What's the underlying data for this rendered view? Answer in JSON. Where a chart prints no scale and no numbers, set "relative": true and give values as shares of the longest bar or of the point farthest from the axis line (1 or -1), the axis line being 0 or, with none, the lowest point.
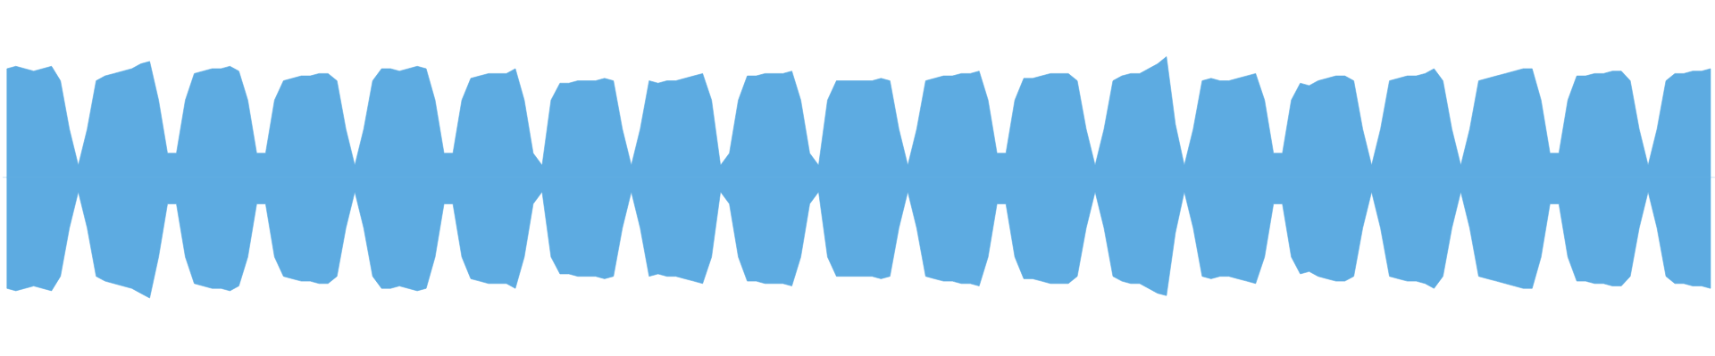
{
  "chart_data": {
    "type": "area",
    "relative": true,
    "ref_lines": [
      {
        "axis": "y",
        "value": 0,
        "color": "#5dabe1"
      }
    ],
    "categories": [
      null,
      null,
      null,
      null,
      null,
      null,
      null,
      null,
      null,
      null,
      null,
      null,
      null,
      null,
      null,
      null,
      null,
      null,
      null,
      null,
      null,
      null,
      null,
      null,
      null,
      null,
      null,
      null,
      null,
      null,
      null,
      null,
      null,
      null,
      null,
      null,
      null,
      null,
      null,
      null,
      null,
      null,
      null,
      null,
      null,
      null,
      null,
      null,
      null,
      null,
      null,
      null,
      null,
      null,
      null,
      null,
      null,
      null,
      null,
      null,
      null,
      null,
      null,
      null,
      null,
      null,
      null,
      null,
      null,
      null,
      null,
      null,
      null,
      null,
      null,
      null,
      null,
      null,
      null,
      null,
      null,
      null,
      null,
      null,
      null,
      null,
      null,
      null,
      null,
      null,
      null,
      null,
      null,
      null,
      null,
      null,
      null,
      null,
      null,
      null,
      null,
      null,
      null,
      null,
      null,
      null,
      null,
      null,
      null,
      null,
      null,
      null,
      null,
      null,
      null,
      null,
      null,
      null,
      null,
      null,
      null,
      null,
      null,
      null,
      null,
      null,
      null,
      null,
      null,
      null,
      null,
      null,
      null,
      null,
      null,
      null,
      null,
      null,
      null,
      null,
      null,
      null,
      null,
      null,
      null,
      null,
      null,
      null,
      null,
      null,
      null,
      null,
      null,
      null,
      null,
      null,
      null,
      null,
      null,
      null,
      null,
      null,
      null,
      null,
      null,
      null,
      null,
      null,
      null,
      null,
      null,
      null,
      null,
      null,
      null,
      null,
      null,
      null,
      null,
      null,
      null,
      null,
      null,
      null,
      null,
      null,
      null,
      null,
      null,
      null,
      null,
      null
    ],
    "series": [
      {
        "color": "#5dabe1",
        "values": [
          0.9,
          0.92,
          0.9,
          0.88,
          0.9,
          0.92,
          0.8,
          0.4,
          0.1,
          0.4,
          0.8,
          0.84,
          0.86,
          0.88,
          0.9,
          0.94,
          0.96,
          0.64,
          0.2,
          0.2,
          0.64,
          0.86,
          0.88,
          0.9,
          0.9,
          0.92,
          0.88,
          0.64,
          0.2,
          0.2,
          0.64,
          0.8,
          0.82,
          0.84,
          0.84,
          0.86,
          0.86,
          0.8,
          0.4,
          0.1,
          0.4,
          0.8,
          0.9,
          0.9,
          0.88,
          0.9,
          0.92,
          0.9,
          0.64,
          0.2,
          0.2,
          0.64,
          0.82,
          0.84,
          0.86,
          0.86,
          0.86,
          0.9,
          0.64,
          0.2,
          0.1,
          0.64,
          0.78,
          0.78,
          0.8,
          0.8,
          0.8,
          0.82,
          0.8,
          0.4,
          0.1,
          0.4,
          0.8,
          0.78,
          0.8,
          0.8,
          0.82,
          0.84,
          0.86,
          0.64,
          0.1,
          0.2,
          0.64,
          0.84,
          0.84,
          0.86,
          0.86,
          0.86,
          0.88,
          0.64,
          0.2,
          0.1,
          0.64,
          0.8,
          0.8,
          0.8,
          0.8,
          0.8,
          0.82,
          0.8,
          0.4,
          0.1,
          0.4,
          0.8,
          0.82,
          0.84,
          0.84,
          0.86,
          0.86,
          0.88,
          0.64,
          0.2,
          0.2,
          0.64,
          0.82,
          0.82,
          0.84,
          0.86,
          0.86,
          0.86,
          0.8,
          0.4,
          0.1,
          0.4,
          0.8,
          0.84,
          0.86,
          0.86,
          0.9,
          0.94,
          1.0,
          0.44,
          0.1,
          0.4,
          0.8,
          0.82,
          0.8,
          0.8,
          0.82,
          0.84,
          0.86,
          0.64,
          0.2,
          0.2,
          0.64,
          0.78,
          0.76,
          0.8,
          0.82,
          0.84,
          0.84,
          0.8,
          0.4,
          0.1,
          0.4,
          0.8,
          0.82,
          0.84,
          0.84,
          0.86,
          0.9,
          0.8,
          0.4,
          0.1,
          0.4,
          0.8,
          0.82,
          0.84,
          0.86,
          0.88,
          0.9,
          0.9,
          0.64,
          0.2,
          0.2,
          0.64,
          0.84,
          0.84,
          0.86,
          0.86,
          0.88,
          0.88,
          0.8,
          0.4,
          0.1,
          0.4,
          0.8,
          0.86,
          0.86,
          0.88,
          0.88,
          0.9
        ]
      },
      {
        "color": "#5dabe1",
        "values": [
          -0.92,
          -0.94,
          -0.92,
          -0.9,
          -0.92,
          -0.94,
          -0.82,
          -0.42,
          -0.12,
          -0.42,
          -0.82,
          -0.86,
          -0.88,
          -0.9,
          -0.92,
          -0.96,
          -1.0,
          -0.66,
          -0.22,
          -0.22,
          -0.66,
          -0.88,
          -0.9,
          -0.92,
          -0.92,
          -0.94,
          -0.9,
          -0.66,
          -0.22,
          -0.22,
          -0.66,
          -0.82,
          -0.84,
          -0.86,
          -0.86,
          -0.88,
          -0.88,
          -0.82,
          -0.42,
          -0.12,
          -0.42,
          -0.82,
          -0.92,
          -0.92,
          -0.9,
          -0.92,
          -0.94,
          -0.92,
          -0.66,
          -0.22,
          -0.22,
          -0.66,
          -0.84,
          -0.86,
          -0.88,
          -0.88,
          -0.88,
          -0.92,
          -0.66,
          -0.22,
          -0.12,
          -0.66,
          -0.8,
          -0.8,
          -0.82,
          -0.82,
          -0.82,
          -0.84,
          -0.82,
          -0.42,
          -0.12,
          -0.42,
          -0.82,
          -0.8,
          -0.82,
          -0.82,
          -0.84,
          -0.86,
          -0.88,
          -0.66,
          -0.12,
          -0.22,
          -0.66,
          -0.86,
          -0.86,
          -0.88,
          -0.88,
          -0.88,
          -0.9,
          -0.66,
          -0.22,
          -0.12,
          -0.66,
          -0.82,
          -0.82,
          -0.82,
          -0.82,
          -0.82,
          -0.84,
          -0.82,
          -0.42,
          -0.12,
          -0.42,
          -0.82,
          -0.84,
          -0.86,
          -0.86,
          -0.88,
          -0.88,
          -0.9,
          -0.66,
          -0.22,
          -0.22,
          -0.66,
          -0.84,
          -0.84,
          -0.86,
          -0.88,
          -0.88,
          -0.88,
          -0.82,
          -0.42,
          -0.12,
          -0.42,
          -0.82,
          -0.86,
          -0.88,
          -0.88,
          -0.92,
          -0.96,
          -0.98,
          -0.46,
          -0.12,
          -0.42,
          -0.82,
          -0.84,
          -0.82,
          -0.82,
          -0.84,
          -0.86,
          -0.88,
          -0.66,
          -0.22,
          -0.22,
          -0.66,
          -0.8,
          -0.78,
          -0.82,
          -0.84,
          -0.86,
          -0.86,
          -0.82,
          -0.42,
          -0.12,
          -0.42,
          -0.82,
          -0.84,
          -0.86,
          -0.86,
          -0.88,
          -0.92,
          -0.82,
          -0.42,
          -0.12,
          -0.42,
          -0.82,
          -0.84,
          -0.86,
          -0.88,
          -0.9,
          -0.92,
          -0.92,
          -0.66,
          -0.22,
          -0.22,
          -0.66,
          -0.86,
          -0.86,
          -0.88,
          -0.88,
          -0.9,
          -0.9,
          -0.82,
          -0.42,
          -0.12,
          -0.42,
          -0.82,
          -0.88,
          -0.88,
          -0.9,
          -0.9,
          -0.92
        ]
      }
    ]
  }
}
